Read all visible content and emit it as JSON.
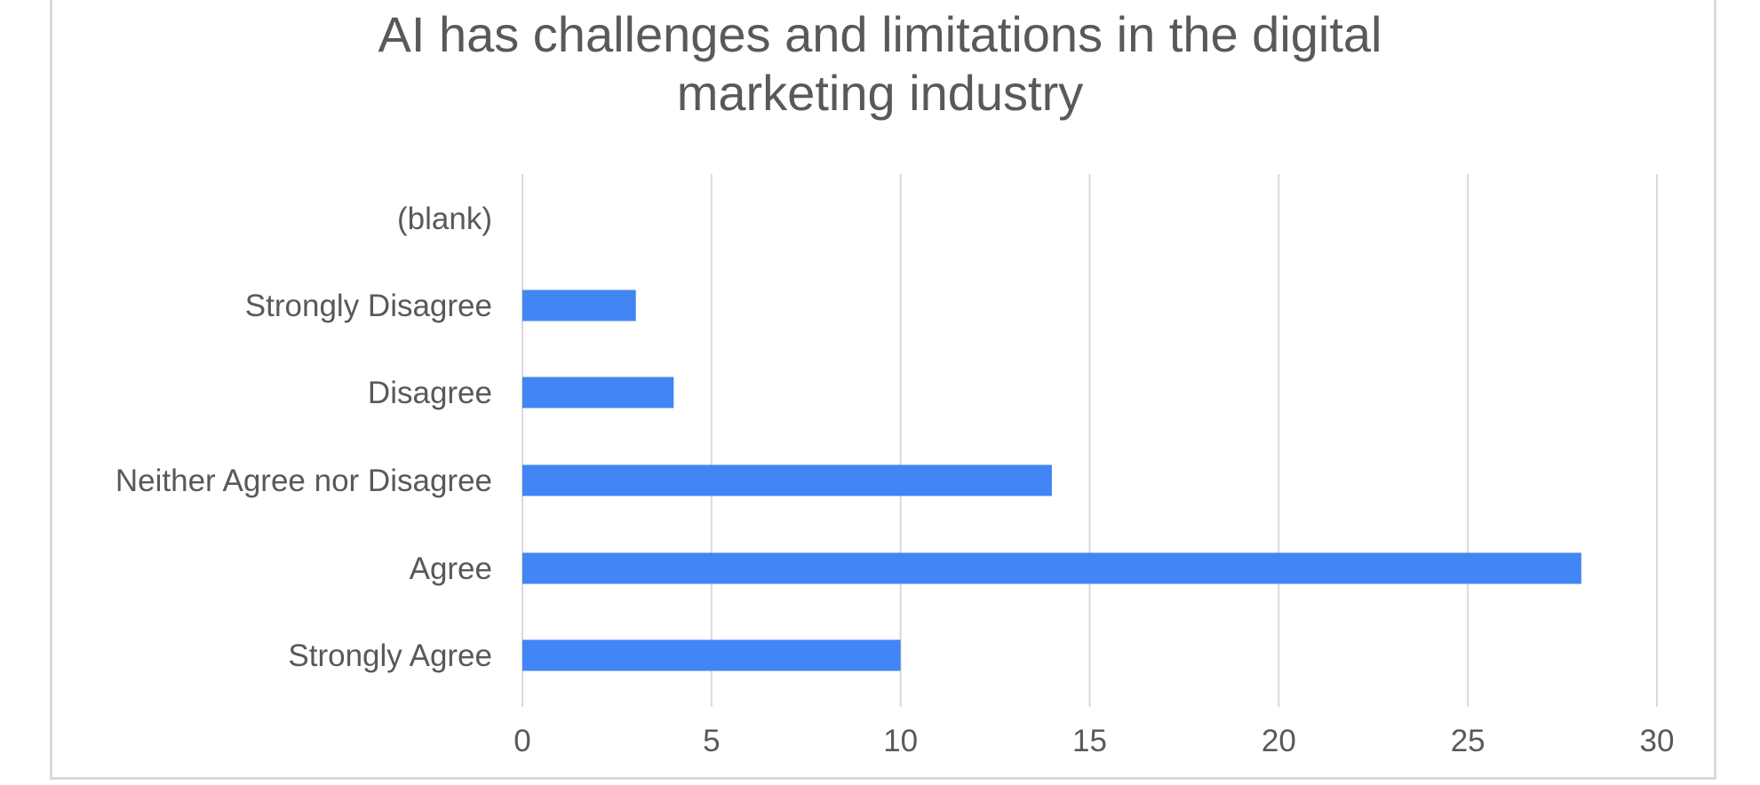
{
  "chart_data": {
    "type": "bar",
    "orientation": "horizontal",
    "title_lines": [
      "AI has challenges and limitations in the digital",
      "marketing industry"
    ],
    "categories": [
      "(blank)",
      "Strongly Disagree",
      "Disagree",
      "Neither Agree nor Disagree",
      "Agree",
      "Strongly Agree"
    ],
    "values": [
      null,
      3,
      4,
      14,
      28,
      10
    ],
    "xlim": [
      0,
      30
    ],
    "xticks": [
      0,
      5,
      10,
      15,
      20,
      25,
      30
    ],
    "grid": true,
    "bar_color": "#4285f4",
    "gridline_color": "#d9d9d9",
    "text_color": "#595959"
  }
}
